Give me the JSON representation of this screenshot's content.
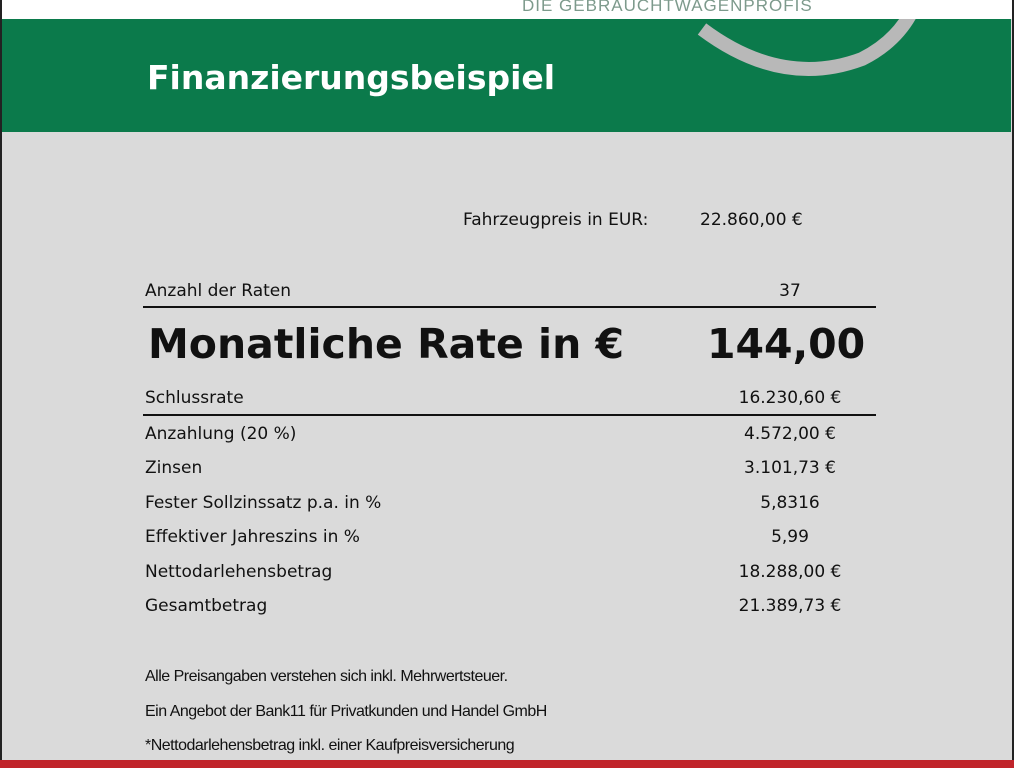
{
  "logo": {
    "tagline": "DIE GEBRAUCHTWAGENPROFIS"
  },
  "header": {
    "title": "Finanzierungsbeispiel"
  },
  "vehicle": {
    "price_label": "Fahrzeugpreis in EUR:",
    "price_value": "22.860,00 €"
  },
  "rates_count": {
    "label": "Anzahl der Raten",
    "value": "37"
  },
  "monthly_rate": {
    "label": "Monatliche Rate in €",
    "value": "144,00"
  },
  "details": [
    {
      "label": "Schlussrate",
      "value": "16.230,60 €"
    },
    {
      "label": "Anzahlung (20 %)",
      "value": "4.572,00 €"
    },
    {
      "label": "Zinsen",
      "value": "3.101,73 €"
    },
    {
      "label": "Fester Sollzinssatz p.a. in %",
      "value": "5,8316"
    },
    {
      "label": "Effektiver Jahreszins in %",
      "value": "5,99"
    },
    {
      "label": "Nettodarlehensbetrag",
      "value": "18.288,00 €"
    },
    {
      "label": "Gesamtbetrag",
      "value": "21.389,73 €"
    }
  ],
  "notes": [
    "Alle Preisangaben verstehen sich inkl. Mehrwertsteuer.",
    "Ein Angebot der Bank11 für Privatkunden und Handel GmbH",
    "*Nettodarlehensbetrag inkl. einer Kaufpreisversicherung"
  ],
  "colors": {
    "brand_green": "#0b7a4b",
    "accent_red": "#c0242a",
    "background": "#dadada"
  }
}
